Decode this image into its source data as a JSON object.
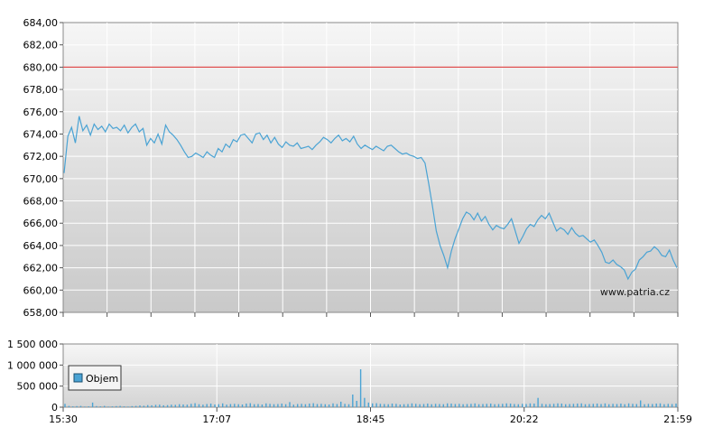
{
  "chart_data": [
    {
      "type": "line",
      "y_ticks": [
        "684,00",
        "682,00",
        "680,00",
        "678,00",
        "676,00",
        "674,00",
        "672,00",
        "670,00",
        "668,00",
        "666,00",
        "664,00",
        "662,00",
        "660,00",
        "658,00"
      ],
      "ylim": [
        658,
        684
      ],
      "reference_line": {
        "value": 680,
        "color": "#e05050"
      },
      "line_color": "#4aa3d4",
      "grid": true,
      "watermark": "www.patria.cz",
      "series": [
        {
          "values": [
            670.5,
            673.8,
            674.6,
            673.2,
            675.6,
            674.3,
            674.8,
            673.9,
            674.9,
            674.4,
            674.7,
            674.2,
            674.9,
            674.5,
            674.6,
            674.3,
            674.8,
            674.1,
            674.6,
            674.9,
            674.2,
            674.5,
            673.0,
            673.6,
            673.2,
            674.0,
            673.1,
            674.8,
            674.2,
            673.9,
            673.5,
            673.0,
            672.4,
            671.9,
            672.0,
            672.3,
            672.1,
            671.9,
            672.4,
            672.1,
            671.9,
            672.7,
            672.4,
            673.1,
            672.8,
            673.5,
            673.3,
            673.9,
            674.0,
            673.6,
            673.2,
            674.0,
            674.1,
            673.5,
            673.9,
            673.2,
            673.7,
            673.1,
            672.8,
            673.3,
            673.0,
            672.9,
            673.2,
            672.7,
            672.8,
            672.9,
            672.6,
            673.0,
            673.3,
            673.7,
            673.5,
            673.2,
            673.6,
            673.9,
            673.4,
            673.6,
            673.3,
            673.8,
            673.1,
            672.7,
            673.0,
            672.8,
            672.6,
            672.9,
            672.7,
            672.5,
            672.9,
            673.0,
            672.7,
            672.4,
            672.2,
            672.3,
            672.1,
            672.0,
            671.8,
            671.9,
            671.4,
            669.5,
            667.5,
            665.3,
            664.0,
            663.1,
            662.0,
            663.5,
            664.6,
            665.5,
            666.4,
            667.0,
            666.8,
            666.3,
            666.9,
            666.2,
            666.6,
            665.9,
            665.4,
            665.8,
            665.6,
            665.5,
            665.9,
            666.4,
            665.3,
            664.2,
            664.8,
            665.5,
            665.9,
            665.7,
            666.3,
            666.7,
            666.4,
            666.9,
            666.1,
            665.3,
            665.6,
            665.4,
            665.0,
            665.6,
            665.1,
            664.8,
            664.9,
            664.6,
            664.3,
            664.5,
            664.0,
            663.4,
            662.5,
            662.4,
            662.7,
            662.3,
            662.1,
            661.8,
            661.0,
            661.6,
            661.9,
            662.7,
            663.0,
            663.4,
            663.5,
            663.9,
            663.6,
            663.1,
            663.0,
            663.6,
            662.7,
            662.0
          ]
        }
      ],
      "x_ticks": [
        "15:30",
        "17:07",
        "18:45",
        "20:22",
        "21:59"
      ]
    },
    {
      "type": "bar",
      "y_ticks": [
        "1 500 000",
        "1 000 000",
        "500 000",
        "0"
      ],
      "ylim": [
        0,
        1500000
      ],
      "bar_color": "#4aa3d4",
      "legend": {
        "label": "Objem",
        "placement": "top-left"
      },
      "series": [
        {
          "name": "Objem",
          "values": [
            80000,
            30000,
            20000,
            25000,
            30000,
            15000,
            20000,
            110000,
            25000,
            20000,
            30000,
            15000,
            20000,
            25000,
            30000,
            20000,
            15000,
            25000,
            30000,
            40000,
            35000,
            50000,
            45000,
            55000,
            60000,
            45000,
            50000,
            60000,
            55000,
            70000,
            65000,
            60000,
            80000,
            95000,
            70000,
            60000,
            75000,
            85000,
            65000,
            70000,
            90000,
            60000,
            75000,
            80000,
            70000,
            65000,
            85000,
            95000,
            70000,
            75000,
            65000,
            90000,
            80000,
            70000,
            75000,
            85000,
            70000,
            120000,
            60000,
            75000,
            80000,
            70000,
            85000,
            95000,
            75000,
            80000,
            70000,
            65000,
            90000,
            75000,
            130000,
            80000,
            70000,
            300000,
            150000,
            900000,
            220000,
            110000,
            90000,
            95000,
            80000,
            75000,
            70000,
            85000,
            80000,
            65000,
            70000,
            75000,
            90000,
            80000,
            70000,
            75000,
            85000,
            70000,
            80000,
            75000,
            70000,
            90000,
            85000,
            75000,
            80000,
            70000,
            75000,
            80000,
            90000,
            70000,
            75000,
            80000,
            85000,
            70000,
            75000,
            80000,
            90000,
            85000,
            75000,
            70000,
            80000,
            75000,
            90000,
            85000,
            220000,
            80000,
            70000,
            75000,
            80000,
            90000,
            85000,
            70000,
            75000,
            80000,
            85000,
            90000,
            70000,
            75000,
            80000,
            85000,
            75000,
            90000,
            70000,
            80000,
            75000,
            85000,
            70000,
            90000,
            80000,
            75000,
            160000,
            70000,
            80000,
            75000,
            85000,
            90000,
            70000,
            80000,
            75000,
            85000
          ]
        }
      ],
      "x_ticks": [
        "15:30",
        "17:07",
        "18:45",
        "20:22",
        "21:59"
      ]
    }
  ]
}
